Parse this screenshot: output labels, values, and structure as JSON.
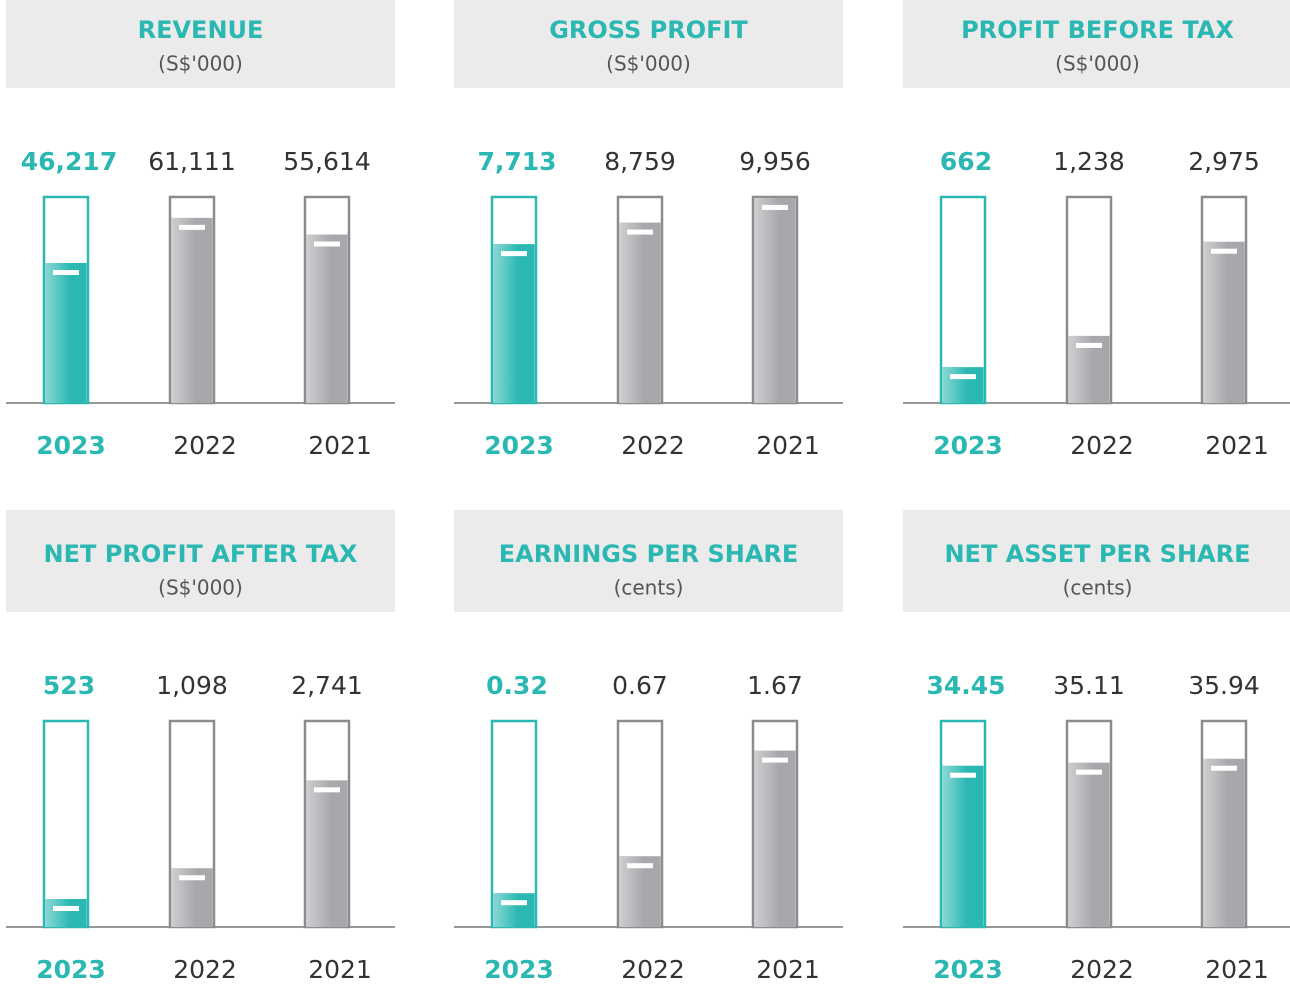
{
  "chart_data": [
    {
      "type": "bar",
      "title": "REVENUE",
      "subtitle": "(S$'000)",
      "categories": [
        "2023",
        "2022",
        "2021"
      ],
      "values": [
        46217,
        61111,
        55614
      ],
      "value_labels": [
        "46,217",
        "61,111",
        "55,614"
      ],
      "colors": [
        "#2bb8b2",
        "#a6a8ab",
        "#a6a8ab"
      ],
      "ylim": [
        0,
        68000
      ]
    },
    {
      "type": "bar",
      "title": "GROSS PROFIT",
      "subtitle": "(S$'000)",
      "categories": [
        "2023",
        "2022",
        "2021"
      ],
      "values": [
        7713,
        8759,
        9956
      ],
      "value_labels": [
        "7,713",
        "8,759",
        "9,956"
      ],
      "colors": [
        "#2bb8b2",
        "#a6a8ab",
        "#a6a8ab"
      ],
      "ylim": [
        0,
        10000
      ]
    },
    {
      "type": "bar",
      "title": "PROFIT BEFORE TAX",
      "subtitle": "(S$'000)",
      "categories": [
        "2023",
        "2022",
        "2021"
      ],
      "values": [
        662,
        1238,
        2975
      ],
      "value_labels": [
        "662",
        "1,238",
        "2,975"
      ],
      "colors": [
        "#2bb8b2",
        "#a6a8ab",
        "#a6a8ab"
      ],
      "ylim": [
        0,
        3800
      ]
    },
    {
      "type": "bar",
      "title": "NET PROFIT AFTER TAX",
      "subtitle": "(S$'000)",
      "categories": [
        "2023",
        "2022",
        "2021"
      ],
      "values": [
        523,
        1098,
        2741
      ],
      "value_labels": [
        "523",
        "1,098",
        "2,741"
      ],
      "colors": [
        "#2bb8b2",
        "#a6a8ab",
        "#a6a8ab"
      ],
      "ylim": [
        0,
        3850
      ]
    },
    {
      "type": "bar",
      "title": "EARNINGS PER SHARE",
      "subtitle": "(cents)",
      "categories": [
        "2023",
        "2022",
        "2021"
      ],
      "values": [
        0.32,
        0.67,
        1.67
      ],
      "colors": [
        "#2bb8b2",
        "#a6a8ab",
        "#a6a8ab"
      ],
      "ylim": [
        0,
        1.95
      ]
    },
    {
      "type": "bar",
      "title": "NET ASSET PER SHARE",
      "subtitle": "(cents)",
      "categories": [
        "2023",
        "2022",
        "2021"
      ],
      "values": [
        34.45,
        35.11,
        35.94
      ],
      "colors": [
        "#2bb8b2",
        "#a6a8ab",
        "#a6a8ab"
      ],
      "ylim": [
        0,
        44
      ]
    }
  ]
}
